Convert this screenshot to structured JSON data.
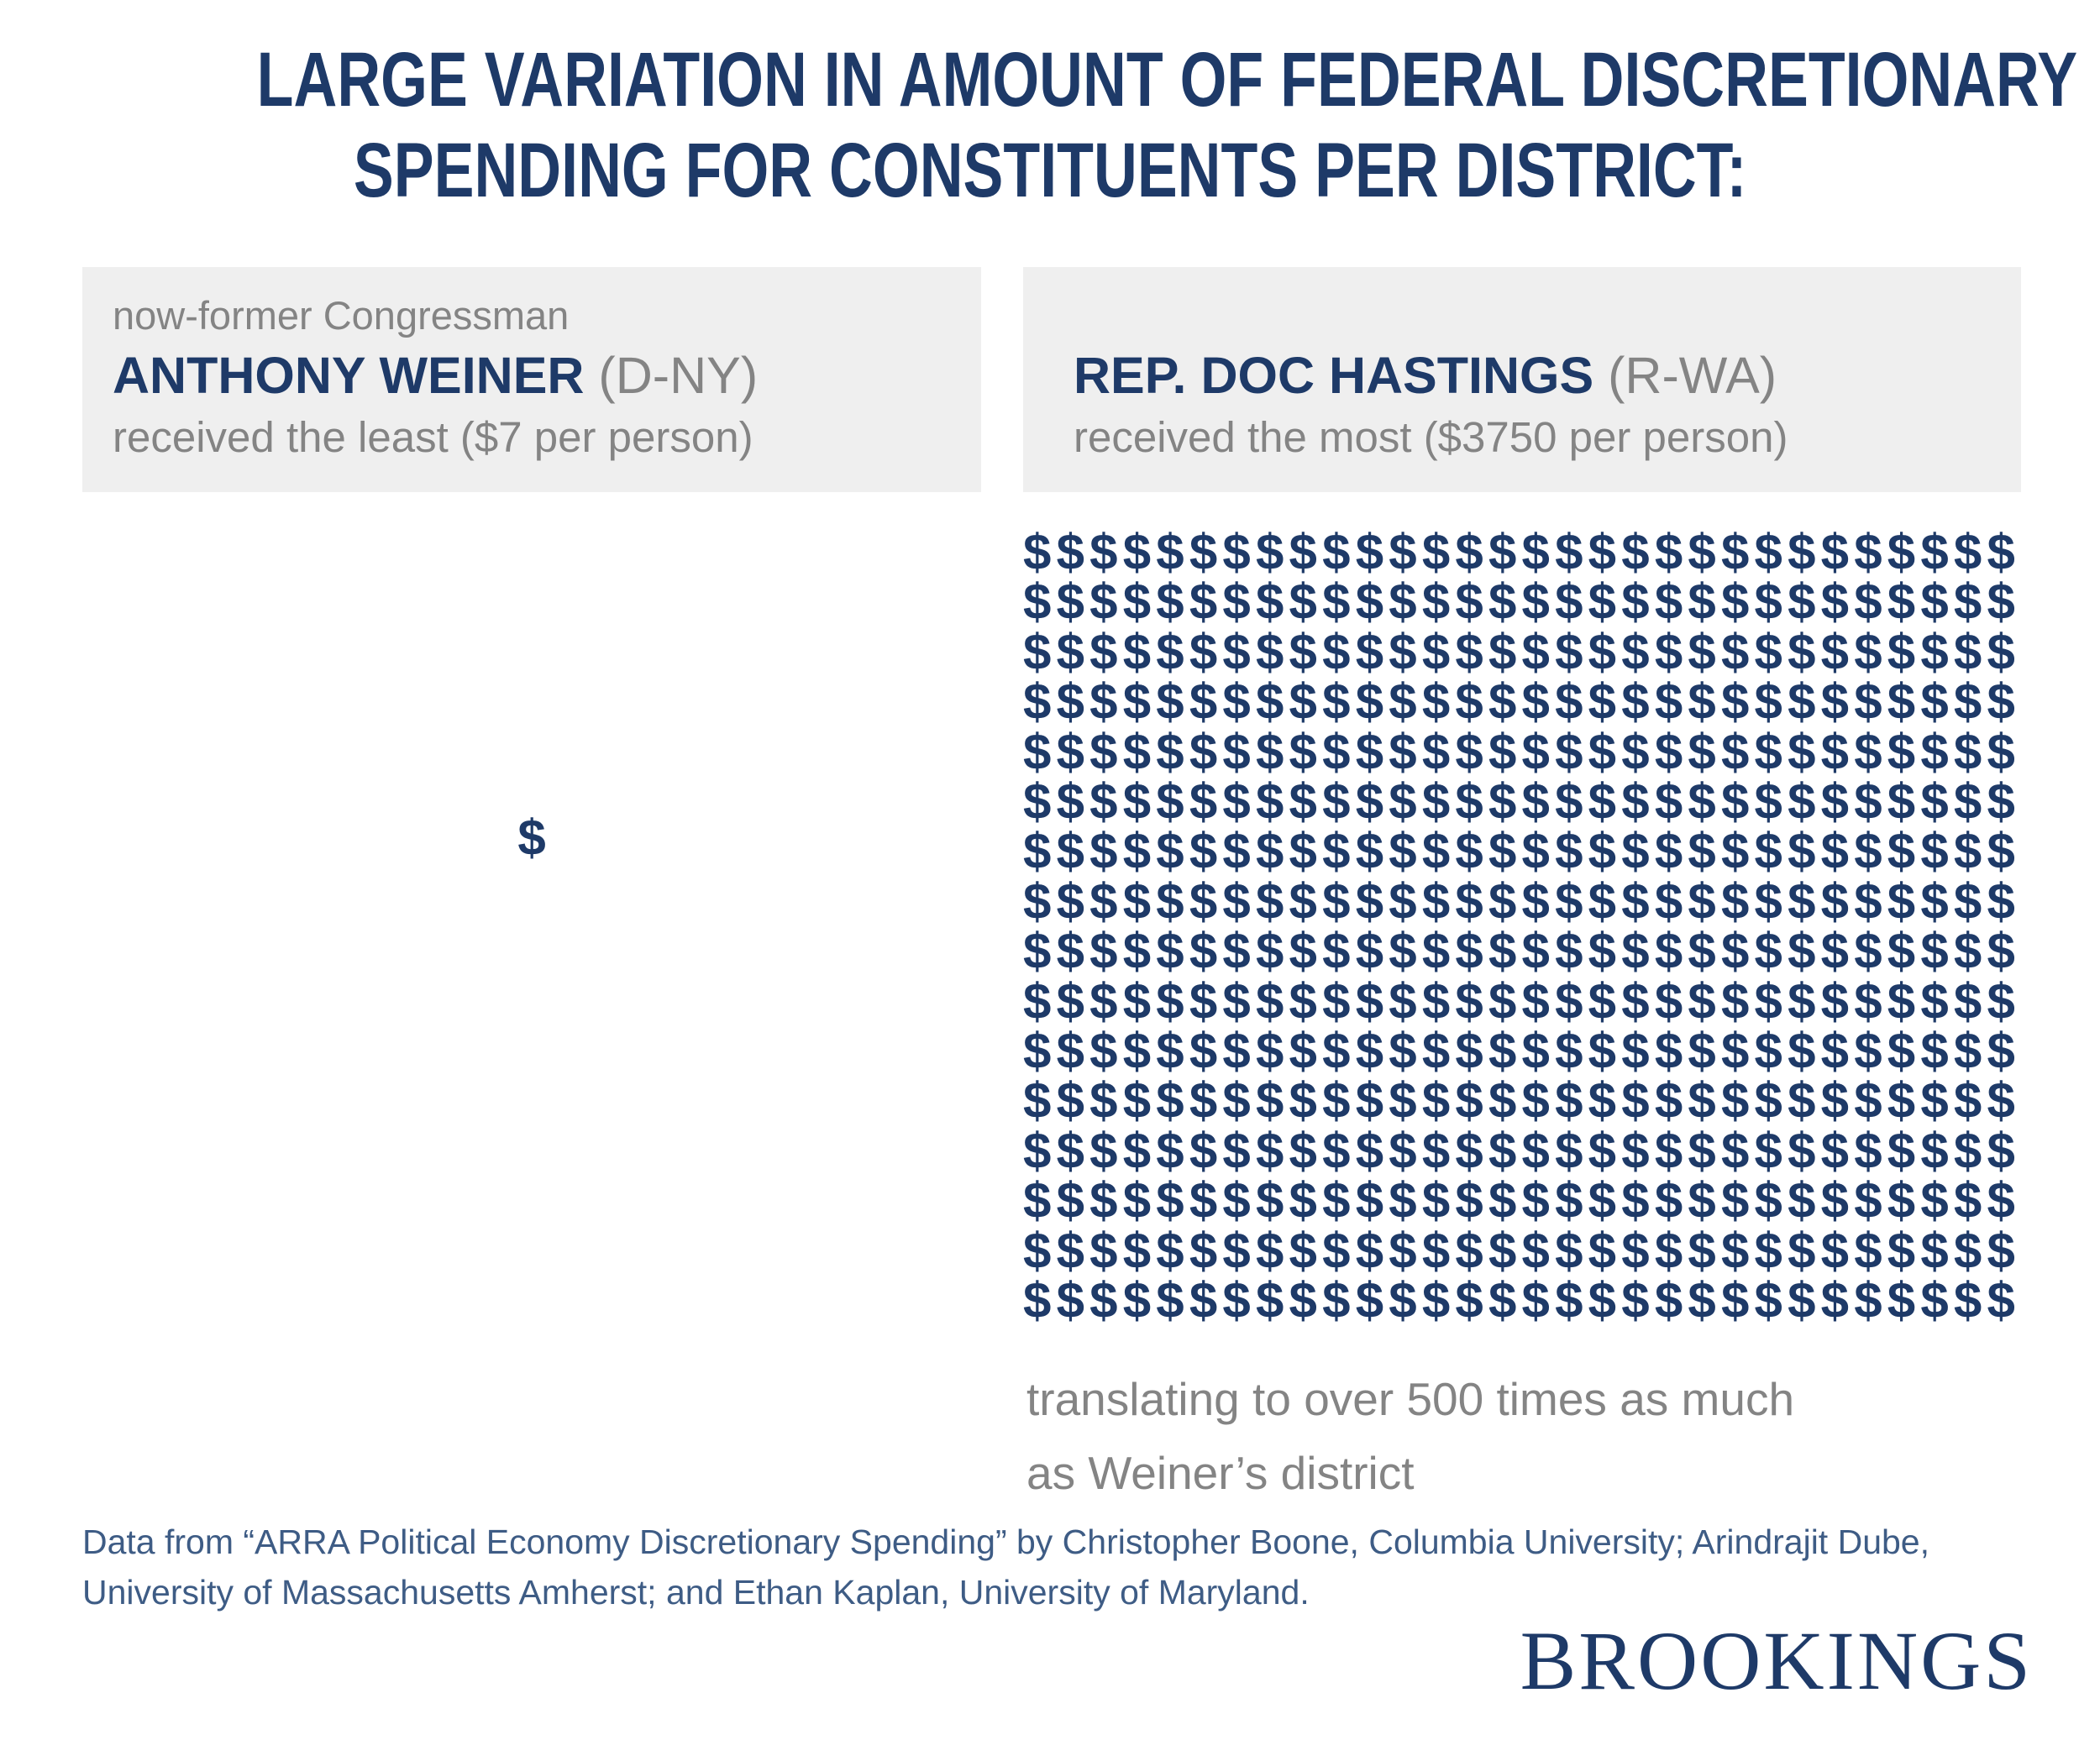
{
  "title": {
    "line1": "LARGE VARIATION IN AMOUNT OF FEDERAL DISCRETIONARY",
    "line2": "SPENDING FOR CONSTITUENTS PER DISTRICT:"
  },
  "least": {
    "intro": "now-former Congressman",
    "name": "ANTHONY WEINER",
    "party": "(D-NY)",
    "detail": "received the least ($7 per person)"
  },
  "most": {
    "name": "REP. DOC HASTINGS",
    "party": "(R-WA)",
    "detail": "received the most ($3750 per person)",
    "caption_line1": "translating to over 500 times as much",
    "caption_line2": "as Weiner’s district"
  },
  "footer": {
    "source_line1": "Data from “ARRA Political Economy Discretionary Spending” by Christopher Boone, Columbia University; Arindrajit Dube,",
    "source_line2": "University of Massachusetts Amherst; and Ethan Kaplan, University of Maryland.",
    "brand": "BROOKINGS"
  },
  "colors": {
    "navy": "#1e3a68",
    "gray": "#848484",
    "box_bg": "#efefef",
    "slate": "#3e5c85"
  },
  "chart_data": {
    "type": "bar",
    "variant": "pictograph",
    "symbol": "$",
    "title": "Federal discretionary spending for constituents per district ($ per person)",
    "categories": [
      "Anthony Weiner (D-NY)",
      "Doc Hastings (R-WA)"
    ],
    "values": [
      7,
      3750
    ],
    "units": "USD per person",
    "annotation": "over 500 times as much",
    "weiner_symbol_count": 1,
    "hastings_grid": {
      "rows": 16,
      "cols": 30
    }
  }
}
